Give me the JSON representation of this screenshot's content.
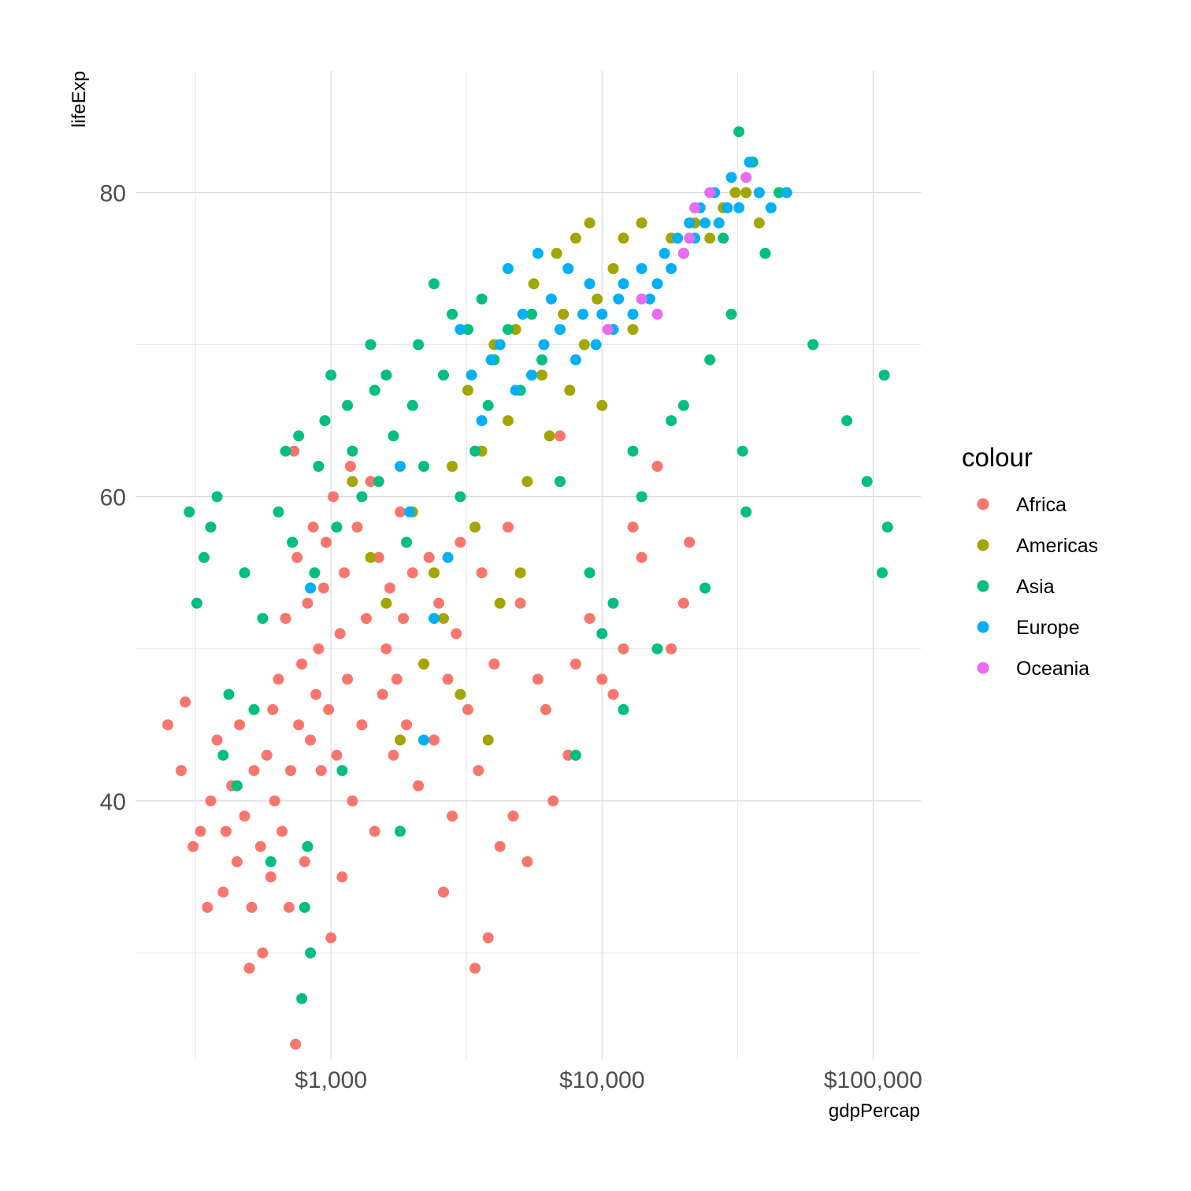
{
  "chart_data": {
    "type": "scatter",
    "xlabel": "gdpPercap",
    "ylabel": "lifeExp",
    "x_scale": "log10",
    "xlim": [
      190,
      150000
    ],
    "ylim": [
      23,
      88
    ],
    "x_ticks": [
      1000,
      10000,
      100000
    ],
    "x_tick_labels": [
      "$1,000",
      "$10,000",
      "$100,000"
    ],
    "y_ticks": [
      40,
      60,
      80
    ],
    "y_tick_labels": [
      "40",
      "60",
      "80"
    ],
    "grid": true,
    "legend": {
      "title": "colour",
      "position": "right",
      "entries": [
        "Africa",
        "Americas",
        "Asia",
        "Europe",
        "Oceania"
      ]
    },
    "colors": {
      "Africa": "#F8766D",
      "Americas": "#A3A500",
      "Asia": "#00BF7D",
      "Europe": "#00B0F6",
      "Oceania": "#E76BF3"
    },
    "series": [
      {
        "name": "Africa",
        "points": [
          [
            250,
            45
          ],
          [
            290,
            46.5
          ],
          [
            280,
            42
          ],
          [
            310,
            37
          ],
          [
            330,
            38
          ],
          [
            350,
            33
          ],
          [
            360,
            40
          ],
          [
            380,
            44
          ],
          [
            400,
            34
          ],
          [
            410,
            38
          ],
          [
            430,
            41
          ],
          [
            450,
            36
          ],
          [
            460,
            45
          ],
          [
            480,
            39
          ],
          [
            500,
            29
          ],
          [
            510,
            33
          ],
          [
            520,
            42
          ],
          [
            550,
            37
          ],
          [
            560,
            30
          ],
          [
            580,
            43
          ],
          [
            600,
            35
          ],
          [
            610,
            46
          ],
          [
            620,
            40
          ],
          [
            640,
            48
          ],
          [
            660,
            38
          ],
          [
            680,
            52
          ],
          [
            700,
            33
          ],
          [
            710,
            42
          ],
          [
            730,
            63
          ],
          [
            740,
            24
          ],
          [
            750,
            56
          ],
          [
            760,
            45
          ],
          [
            780,
            49
          ],
          [
            800,
            36
          ],
          [
            820,
            53
          ],
          [
            840,
            44
          ],
          [
            860,
            58
          ],
          [
            880,
            47
          ],
          [
            900,
            50
          ],
          [
            920,
            42
          ],
          [
            940,
            54
          ],
          [
            960,
            57
          ],
          [
            980,
            46
          ],
          [
            1000,
            31
          ],
          [
            1020,
            60
          ],
          [
            1050,
            43
          ],
          [
            1080,
            51
          ],
          [
            1100,
            35
          ],
          [
            1120,
            55
          ],
          [
            1150,
            48
          ],
          [
            1180,
            62
          ],
          [
            1200,
            40
          ],
          [
            1250,
            58
          ],
          [
            1300,
            45
          ],
          [
            1350,
            52
          ],
          [
            1400,
            61
          ],
          [
            1450,
            38
          ],
          [
            1500,
            56
          ],
          [
            1550,
            47
          ],
          [
            1600,
            50
          ],
          [
            1650,
            54
          ],
          [
            1700,
            43
          ],
          [
            1750,
            48
          ],
          [
            1800,
            59
          ],
          [
            1850,
            52
          ],
          [
            1900,
            45
          ],
          [
            2000,
            55
          ],
          [
            2100,
            41
          ],
          [
            2200,
            49
          ],
          [
            2300,
            56
          ],
          [
            2400,
            44
          ],
          [
            2500,
            53
          ],
          [
            2600,
            34
          ],
          [
            2700,
            48
          ],
          [
            2800,
            39
          ],
          [
            2900,
            51
          ],
          [
            3000,
            57
          ],
          [
            3200,
            46
          ],
          [
            3400,
            29
          ],
          [
            3500,
            42
          ],
          [
            3600,
            55
          ],
          [
            3800,
            31
          ],
          [
            4000,
            49
          ],
          [
            4200,
            37
          ],
          [
            4500,
            58
          ],
          [
            4700,
            39
          ],
          [
            5000,
            53
          ],
          [
            5300,
            36
          ],
          [
            5800,
            48
          ],
          [
            6200,
            46
          ],
          [
            6600,
            40
          ],
          [
            7000,
            64
          ],
          [
            7500,
            43
          ],
          [
            8000,
            49
          ],
          [
            9000,
            52
          ],
          [
            10000,
            48
          ],
          [
            11000,
            47
          ],
          [
            12000,
            50
          ],
          [
            13000,
            58
          ],
          [
            14000,
            56
          ],
          [
            16000,
            62
          ],
          [
            18000,
            50
          ],
          [
            20000,
            53
          ],
          [
            21000,
            57
          ]
        ]
      },
      {
        "name": "Americas",
        "points": [
          [
            1200,
            61
          ],
          [
            1400,
            56
          ],
          [
            1600,
            53
          ],
          [
            1800,
            44
          ],
          [
            2000,
            59
          ],
          [
            2200,
            49
          ],
          [
            2400,
            55
          ],
          [
            2600,
            52
          ],
          [
            2800,
            62
          ],
          [
            3000,
            47
          ],
          [
            3200,
            67
          ],
          [
            3400,
            58
          ],
          [
            3600,
            63
          ],
          [
            3800,
            44
          ],
          [
            4000,
            70
          ],
          [
            4200,
            53
          ],
          [
            4500,
            65
          ],
          [
            4800,
            71
          ],
          [
            5000,
            55
          ],
          [
            5300,
            61
          ],
          [
            5600,
            74
          ],
          [
            6000,
            68
          ],
          [
            6400,
            64
          ],
          [
            6800,
            76
          ],
          [
            7200,
            72
          ],
          [
            7600,
            67
          ],
          [
            8000,
            77
          ],
          [
            8600,
            70
          ],
          [
            9000,
            78
          ],
          [
            9600,
            73
          ],
          [
            10000,
            66
          ],
          [
            11000,
            75
          ],
          [
            12000,
            77
          ],
          [
            13000,
            71
          ],
          [
            14000,
            78
          ],
          [
            16000,
            74
          ],
          [
            18000,
            77
          ],
          [
            20000,
            76
          ],
          [
            22000,
            78
          ],
          [
            25000,
            77
          ],
          [
            28000,
            79
          ],
          [
            31000,
            80
          ],
          [
            34000,
            80
          ],
          [
            38000,
            78
          ]
        ]
      },
      {
        "name": "Asia",
        "points": [
          [
            300,
            59
          ],
          [
            320,
            53
          ],
          [
            340,
            56
          ],
          [
            360,
            58
          ],
          [
            380,
            60
          ],
          [
            400,
            43
          ],
          [
            420,
            47
          ],
          [
            450,
            41
          ],
          [
            480,
            55
          ],
          [
            520,
            46
          ],
          [
            560,
            52
          ],
          [
            600,
            36
          ],
          [
            640,
            59
          ],
          [
            680,
            63
          ],
          [
            720,
            57
          ],
          [
            760,
            64
          ],
          [
            780,
            27
          ],
          [
            800,
            33
          ],
          [
            820,
            37
          ],
          [
            840,
            30
          ],
          [
            870,
            55
          ],
          [
            900,
            62
          ],
          [
            950,
            65
          ],
          [
            1000,
            68
          ],
          [
            1050,
            58
          ],
          [
            1100,
            42
          ],
          [
            1150,
            66
          ],
          [
            1200,
            63
          ],
          [
            1300,
            60
          ],
          [
            1400,
            70
          ],
          [
            1450,
            67
          ],
          [
            1500,
            61
          ],
          [
            1600,
            68
          ],
          [
            1700,
            64
          ],
          [
            1800,
            38
          ],
          [
            1900,
            57
          ],
          [
            2000,
            66
          ],
          [
            2100,
            70
          ],
          [
            2200,
            62
          ],
          [
            2400,
            74
          ],
          [
            2600,
            68
          ],
          [
            2800,
            72
          ],
          [
            3000,
            60
          ],
          [
            3200,
            71
          ],
          [
            3400,
            63
          ],
          [
            3600,
            73
          ],
          [
            3800,
            66
          ],
          [
            4000,
            69
          ],
          [
            4500,
            71
          ],
          [
            5000,
            67
          ],
          [
            5500,
            72
          ],
          [
            6000,
            69
          ],
          [
            7000,
            61
          ],
          [
            8000,
            43
          ],
          [
            9000,
            55
          ],
          [
            10000,
            51
          ],
          [
            11000,
            53
          ],
          [
            12000,
            46
          ],
          [
            13000,
            63
          ],
          [
            14000,
            60
          ],
          [
            16000,
            50
          ],
          [
            18000,
            65
          ],
          [
            20000,
            66
          ],
          [
            24000,
            54
          ],
          [
            25000,
            69
          ],
          [
            28000,
            77
          ],
          [
            30000,
            72
          ],
          [
            32000,
            84
          ],
          [
            33000,
            63
          ],
          [
            34000,
            59
          ],
          [
            36000,
            82
          ],
          [
            40000,
            76
          ],
          [
            45000,
            80
          ],
          [
            60000,
            70
          ],
          [
            80000,
            65
          ],
          [
            95000,
            61
          ],
          [
            108000,
            55
          ],
          [
            110000,
            68
          ],
          [
            113000,
            58
          ]
        ]
      },
      {
        "name": "Europe",
        "points": [
          [
            840,
            54
          ],
          [
            1800,
            62
          ],
          [
            1950,
            59
          ],
          [
            2200,
            44
          ],
          [
            2400,
            52
          ],
          [
            2700,
            56
          ],
          [
            3000,
            71
          ],
          [
            3300,
            68
          ],
          [
            3600,
            65
          ],
          [
            3900,
            69
          ],
          [
            4200,
            70
          ],
          [
            4500,
            75
          ],
          [
            4800,
            67
          ],
          [
            5100,
            72
          ],
          [
            5500,
            68
          ],
          [
            5800,
            76
          ],
          [
            6100,
            70
          ],
          [
            6500,
            73
          ],
          [
            7000,
            71
          ],
          [
            7500,
            75
          ],
          [
            8000,
            69
          ],
          [
            8500,
            72
          ],
          [
            9000,
            74
          ],
          [
            9500,
            70
          ],
          [
            10000,
            72
          ],
          [
            11000,
            71
          ],
          [
            11500,
            73
          ],
          [
            12000,
            74
          ],
          [
            13000,
            72
          ],
          [
            14000,
            75
          ],
          [
            15000,
            73
          ],
          [
            16000,
            74
          ],
          [
            17000,
            76
          ],
          [
            18000,
            75
          ],
          [
            19000,
            77
          ],
          [
            20000,
            76
          ],
          [
            21000,
            78
          ],
          [
            22000,
            77
          ],
          [
            23000,
            79
          ],
          [
            24000,
            78
          ],
          [
            26000,
            80
          ],
          [
            27000,
            78
          ],
          [
            29000,
            79
          ],
          [
            30000,
            81
          ],
          [
            32000,
            79
          ],
          [
            35000,
            82
          ],
          [
            38000,
            80
          ],
          [
            42000,
            79
          ],
          [
            48000,
            80
          ]
        ]
      },
      {
        "name": "Oceania",
        "points": [
          [
            10500,
            71
          ],
          [
            14000,
            73
          ],
          [
            16000,
            72
          ],
          [
            20000,
            76
          ],
          [
            21000,
            77
          ],
          [
            22000,
            79
          ],
          [
            25000,
            80
          ],
          [
            34000,
            81
          ]
        ]
      }
    ]
  }
}
